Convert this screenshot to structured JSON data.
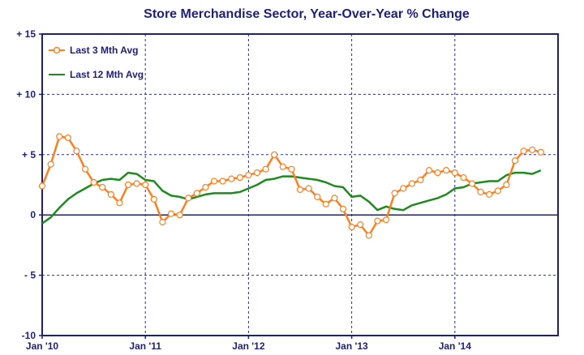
{
  "chart_data": {
    "type": "line",
    "title": "Store Merchandise Sector, Year-Over-Year % Change",
    "xlabel": "",
    "ylabel": "",
    "x_start": "2010-01",
    "x_end": "2014-11",
    "x_tick_labels": [
      "Jan '10",
      "Jan '11",
      "Jan '12",
      "Jan '13",
      "Jan '14"
    ],
    "y_tick_labels": [
      "+ 15",
      "+ 10",
      "+ 5",
      "0",
      "- 5",
      "-10"
    ],
    "ylim": [
      -10,
      15
    ],
    "grid": true,
    "legend_position": "top-left",
    "series": [
      {
        "name": "Last 3 Mth Avg",
        "color": "#ff7f1f",
        "marker": "circle",
        "x": [
          "2010-01",
          "2010-02",
          "2010-03",
          "2010-04",
          "2010-05",
          "2010-06",
          "2010-07",
          "2010-08",
          "2010-09",
          "2010-10",
          "2010-11",
          "2010-12",
          "2011-01",
          "2011-02",
          "2011-03",
          "2011-04",
          "2011-05",
          "2011-06",
          "2011-07",
          "2011-08",
          "2011-09",
          "2011-10",
          "2011-11",
          "2011-12",
          "2012-01",
          "2012-02",
          "2012-03",
          "2012-04",
          "2012-05",
          "2012-06",
          "2012-07",
          "2012-08",
          "2012-09",
          "2012-10",
          "2012-11",
          "2012-12",
          "2013-01",
          "2013-02",
          "2013-03",
          "2013-04",
          "2013-05",
          "2013-06",
          "2013-07",
          "2013-08",
          "2013-09",
          "2013-10",
          "2013-11",
          "2013-12",
          "2014-01",
          "2014-02",
          "2014-03",
          "2014-04",
          "2014-05",
          "2014-06",
          "2014-07",
          "2014-08",
          "2014-09",
          "2014-10",
          "2014-11"
        ],
        "values": [
          2.4,
          4.2,
          6.5,
          6.4,
          5.3,
          3.8,
          2.7,
          2.3,
          1.7,
          1.0,
          2.5,
          2.6,
          2.5,
          1.3,
          -0.6,
          0.1,
          0.0,
          1.4,
          1.8,
          2.3,
          2.8,
          2.8,
          3.0,
          3.1,
          3.3,
          3.5,
          3.8,
          5.0,
          4.0,
          3.8,
          2.1,
          2.2,
          1.5,
          0.9,
          1.4,
          0.5,
          -1.0,
          -0.8,
          -1.7,
          -0.5,
          -0.4,
          1.8,
          2.2,
          2.6,
          2.9,
          3.7,
          3.5,
          3.7,
          3.5,
          3.1,
          2.6,
          1.9,
          1.7,
          2.0,
          2.5,
          4.5,
          5.3,
          5.4,
          5.2
        ]
      },
      {
        "name": "Last 12 Mth Avg",
        "color": "#1f8a1f",
        "marker": "none",
        "x": [
          "2010-01",
          "2010-02",
          "2010-03",
          "2010-04",
          "2010-05",
          "2010-06",
          "2010-07",
          "2010-08",
          "2010-09",
          "2010-10",
          "2010-11",
          "2010-12",
          "2011-01",
          "2011-02",
          "2011-03",
          "2011-04",
          "2011-05",
          "2011-06",
          "2011-07",
          "2011-08",
          "2011-09",
          "2011-10",
          "2011-11",
          "2011-12",
          "2012-01",
          "2012-02",
          "2012-03",
          "2012-04",
          "2012-05",
          "2012-06",
          "2012-07",
          "2012-08",
          "2012-09",
          "2012-10",
          "2012-11",
          "2012-12",
          "2013-01",
          "2013-02",
          "2013-03",
          "2013-04",
          "2013-05",
          "2013-06",
          "2013-07",
          "2013-08",
          "2013-09",
          "2013-10",
          "2013-11",
          "2013-12",
          "2014-01",
          "2014-02",
          "2014-03",
          "2014-04",
          "2014-05",
          "2014-06",
          "2014-07",
          "2014-08",
          "2014-09",
          "2014-10",
          "2014-11"
        ],
        "values": [
          -0.7,
          -0.2,
          0.6,
          1.3,
          1.8,
          2.2,
          2.6,
          2.9,
          3.0,
          2.9,
          3.5,
          3.4,
          2.9,
          2.8,
          2.0,
          1.6,
          1.5,
          1.3,
          1.5,
          1.7,
          1.8,
          1.8,
          1.8,
          1.9,
          2.2,
          2.5,
          2.9,
          3.0,
          3.2,
          3.2,
          3.1,
          3.0,
          2.9,
          2.7,
          2.4,
          2.3,
          1.5,
          1.6,
          1.1,
          0.4,
          0.7,
          0.5,
          0.4,
          0.8,
          1.0,
          1.2,
          1.4,
          1.7,
          2.2,
          2.3,
          2.6,
          2.7,
          2.8,
          2.8,
          3.3,
          3.5,
          3.5,
          3.4,
          3.7
        ]
      }
    ]
  }
}
